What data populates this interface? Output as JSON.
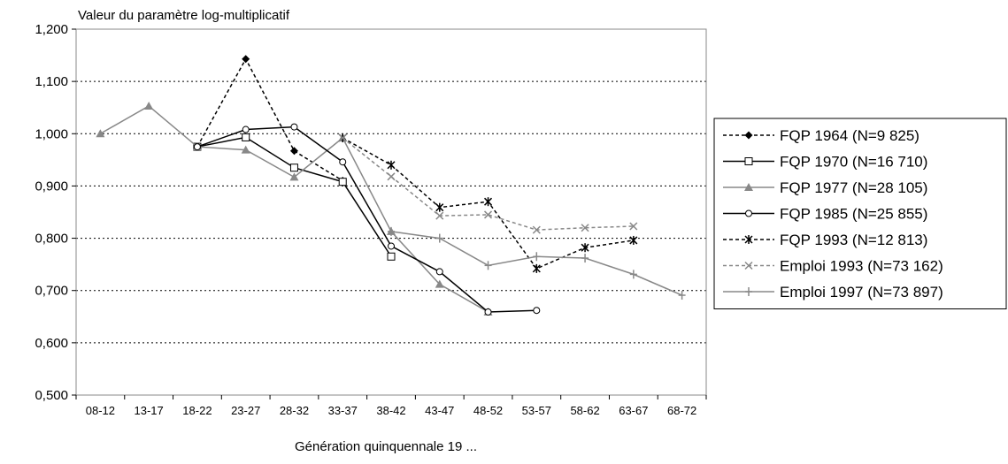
{
  "chart_data": {
    "type": "line",
    "ylabel": "Valeur du paramètre log-multiplicatif",
    "xlabel": "Génération quinquennale 19 ...",
    "categories": [
      "08-12",
      "13-17",
      "18-22",
      "23-27",
      "28-32",
      "33-37",
      "38-42",
      "43-47",
      "48-52",
      "53-57",
      "58-62",
      "63-67",
      "68-72"
    ],
    "ylim": [
      0.5,
      1.2
    ],
    "yticks": [
      0.5,
      0.6,
      0.7,
      0.8,
      0.9,
      1.0,
      1.1,
      1.2
    ],
    "ytick_labels": [
      "0,500",
      "0,600",
      "0,700",
      "0,800",
      "0,900",
      "1,000",
      "1,100",
      "1,200"
    ],
    "grid": "horizontal dotted",
    "legend_position": "right",
    "series": [
      {
        "name": "FQP 1964 (N=9 825)",
        "color": "#000000",
        "dash": "dashed",
        "marker": "diamond",
        "values": [
          null,
          null,
          0.975,
          1.143,
          0.967,
          0.91,
          null,
          null,
          null,
          null,
          null,
          null,
          null
        ]
      },
      {
        "name": "FQP 1970 (N=16 710)",
        "color": "#000000",
        "dash": "solid",
        "marker": "square-open",
        "values": [
          null,
          null,
          0.975,
          0.993,
          0.935,
          0.908,
          0.765,
          null,
          null,
          null,
          null,
          null,
          null
        ]
      },
      {
        "name": "FQP 1977 (N=28 105)",
        "color": "#888888",
        "dash": "solid",
        "marker": "triangle",
        "values": [
          1.0,
          1.053,
          0.975,
          0.969,
          0.917,
          0.992,
          0.813,
          0.712,
          0.659,
          null,
          null,
          null,
          null
        ]
      },
      {
        "name": "FQP 1985 (N=25 855)",
        "color": "#000000",
        "dash": "solid",
        "marker": "circle-open",
        "values": [
          null,
          null,
          0.975,
          1.008,
          1.013,
          0.946,
          0.785,
          0.736,
          0.659,
          0.662,
          null,
          null,
          null
        ]
      },
      {
        "name": "FQP 1993 (N=12 813)",
        "color": "#000000",
        "dash": "dashed",
        "marker": "star",
        "values": [
          null,
          null,
          null,
          null,
          null,
          0.992,
          0.94,
          0.859,
          0.87,
          0.742,
          0.782,
          0.796,
          null
        ]
      },
      {
        "name": "Emploi 1993 (N=73 162)",
        "color": "#888888",
        "dash": "dashed",
        "marker": "x",
        "values": [
          null,
          null,
          null,
          null,
          null,
          0.992,
          0.918,
          0.843,
          0.845,
          0.816,
          0.82,
          0.823,
          null
        ]
      },
      {
        "name": "Emploi 1997 (N=73 897)",
        "color": "#888888",
        "dash": "solid",
        "marker": "plus",
        "values": [
          null,
          null,
          null,
          null,
          null,
          null,
          0.813,
          0.8,
          0.748,
          0.765,
          0.762,
          0.731,
          0.691
        ]
      }
    ]
  }
}
